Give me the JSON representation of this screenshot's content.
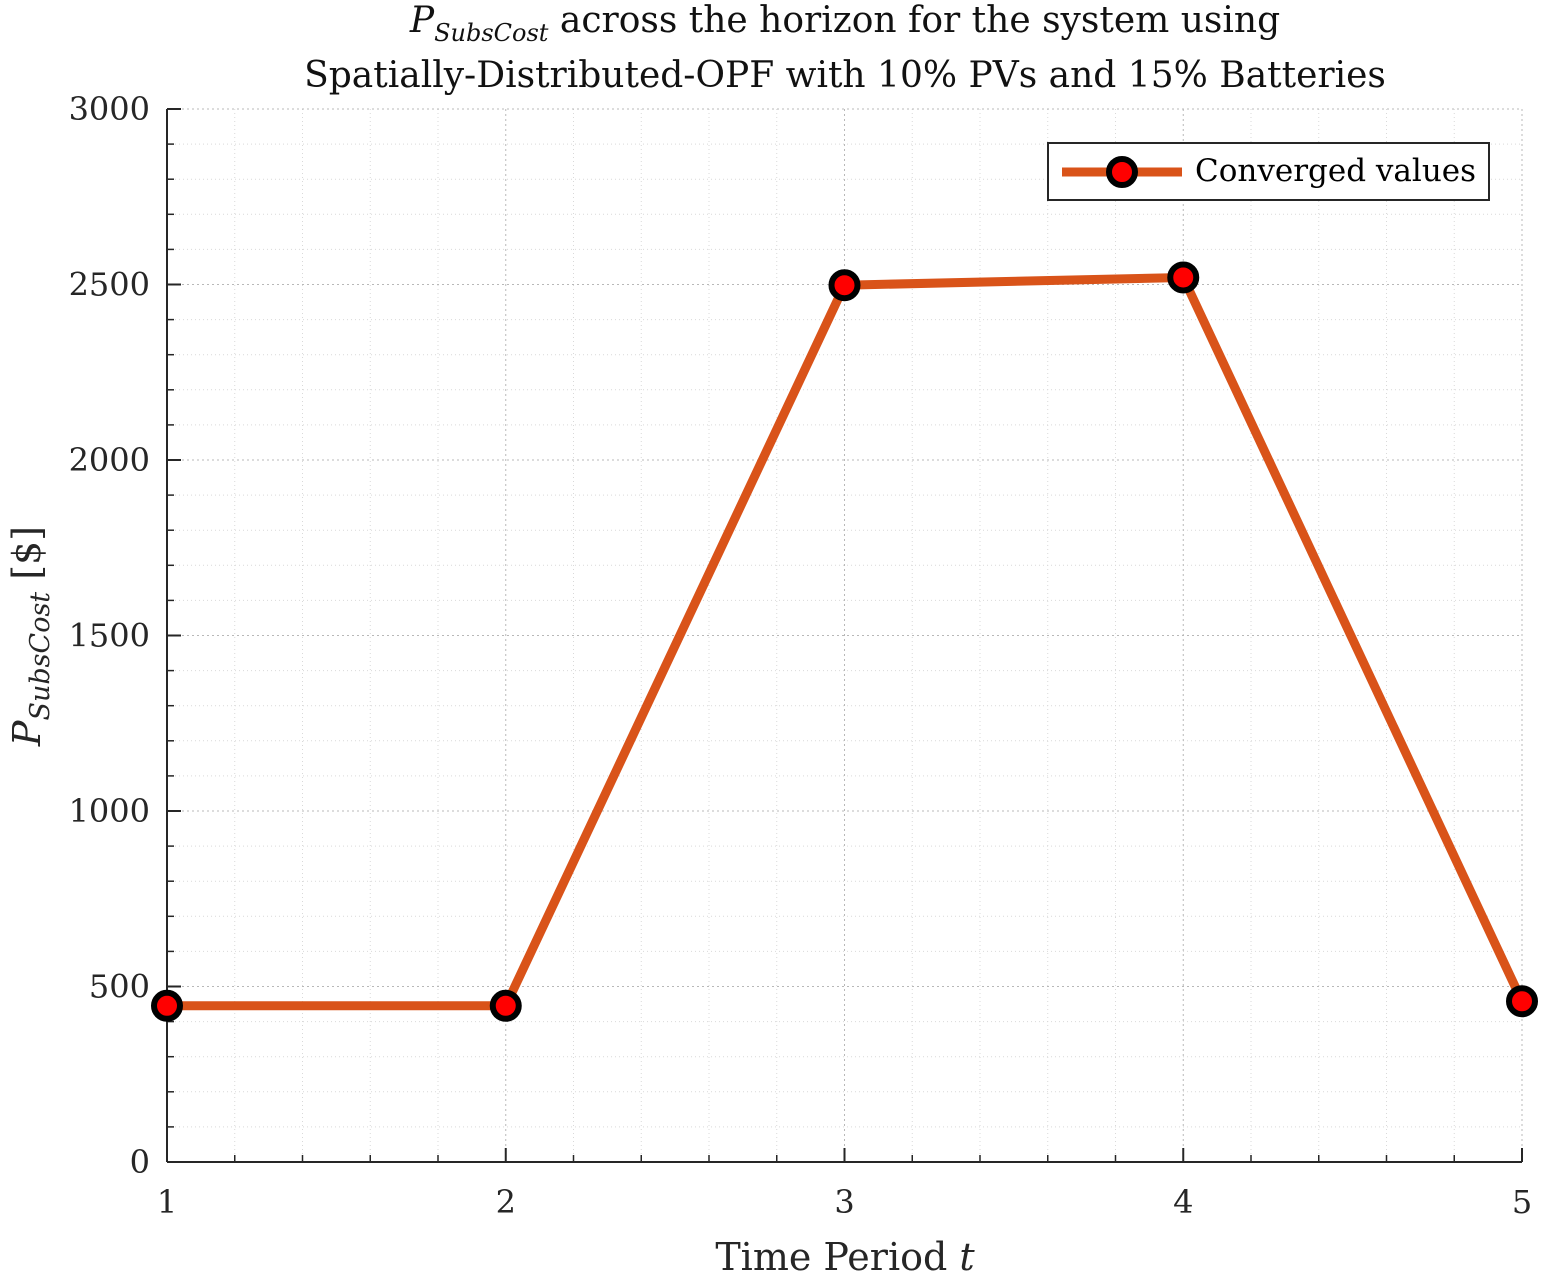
{
  "chart_data": {
    "type": "line",
    "title": {
      "line1_symbol": "P",
      "line1_subscript": "SubsCost",
      "line1_rest": " across the horizon for the system using",
      "line2": "Spatially-Distributed-OPF with 10% PVs and 15% Batteries"
    },
    "xlabel": {
      "text": "Time Period ",
      "italic": "t"
    },
    "ylabel": {
      "symbol": "P",
      "subscript": "SubsCost",
      "unit": " [$]"
    },
    "x": [
      1,
      2,
      3,
      4,
      5
    ],
    "xlim": [
      1,
      5
    ],
    "ylim": [
      0,
      3000
    ],
    "xticks": [
      "1",
      "2",
      "3",
      "4",
      "5"
    ],
    "yticks": [
      "0",
      "500",
      "1000",
      "1500",
      "2000",
      "2500",
      "3000"
    ],
    "series": [
      {
        "name": "Converged values",
        "values": [
          445,
          445,
          2498,
          2520,
          458
        ]
      }
    ],
    "grid": "on (major and minor, dotted)",
    "legend_position": "top-right",
    "colors": {
      "line": "#D95319",
      "marker_edge": "#000000",
      "marker_face": "#FF0000"
    }
  }
}
